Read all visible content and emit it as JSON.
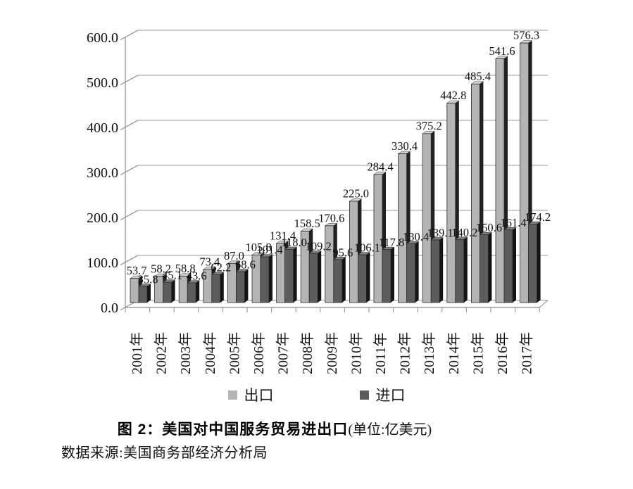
{
  "chart_data": {
    "type": "bar",
    "bar_style": "3d",
    "title": "图 2：美国对中国服务贸易进出口",
    "unit_note": "(单位:亿美元)",
    "source": "数据来源:美国商务部经济分析局",
    "categories": [
      "2001年",
      "2002年",
      "2003年",
      "2004年",
      "2005年",
      "2006年",
      "2007年",
      "2008年",
      "2009年",
      "2010年",
      "2011年",
      "2012年",
      "2013年",
      "2014年",
      "2015年",
      "2016年",
      "2017年"
    ],
    "series": [
      {
        "name": "出口",
        "color": "#b4b4b4",
        "side_color": "#202020",
        "top_color": "#d3d3d3",
        "values": [
          53.7,
          58.2,
          58.8,
          73.4,
          87.0,
          105.8,
          131.4,
          158.5,
          170.6,
          225.0,
          284.4,
          330.4,
          375.2,
          442.8,
          485.4,
          541.6,
          576.3
        ]
      },
      {
        "name": "进口",
        "color": "#5c5c5c",
        "side_color": "#141414",
        "top_color": "#7e7e7e",
        "values": [
          35.8,
          45.1,
          43.6,
          62.2,
          68.6,
          101.4,
          118.0,
          109.2,
          95.6,
          106.1,
          117.8,
          130.4,
          139.1,
          140.2,
          150.6,
          161.4,
          174.2
        ]
      }
    ],
    "xlabel": "",
    "ylabel": "",
    "ylim": [
      0,
      600
    ],
    "ytick_step": 100,
    "ytick_labels": [
      "0.0",
      "100.0",
      "200.0",
      "300.0",
      "400.0",
      "500.0",
      "600.0"
    ],
    "value_labels": true,
    "grid": true,
    "legend_position": "bottom",
    "colors": {
      "background": "#ffffff",
      "grid": "#999999",
      "axis": "#8a8a8a",
      "label": "#111111",
      "bar_outline": "#2b2b2b"
    }
  }
}
